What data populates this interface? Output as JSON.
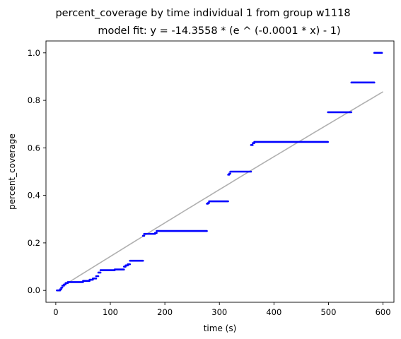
{
  "chart_data": {
    "type": "scatter",
    "title": "percent_coverage by time individual 1 from group w1118",
    "subtitle": "model fit: y = -14.3558 * (e ^ (-0.0001 * x) - 1)",
    "xlabel": "time (s)",
    "ylabel": "percent_coverage",
    "xlim": [
      -18,
      620
    ],
    "ylim": [
      -0.05,
      1.05
    ],
    "x_ticks": [
      0,
      100,
      200,
      300,
      400,
      500,
      600
    ],
    "y_ticks": [
      0.0,
      0.2,
      0.4,
      0.6,
      0.8,
      1.0
    ],
    "x_tick_labels": [
      "0",
      "100",
      "200",
      "300",
      "400",
      "500",
      "600"
    ],
    "y_tick_labels": [
      "0.0",
      "0.2",
      "0.4",
      "0.6",
      "0.8",
      "1.0"
    ],
    "grid": false,
    "colors": {
      "points": "#0000ff",
      "fit": "#b0b0b0"
    },
    "fit": {
      "name": "model fit",
      "a": -14.3558,
      "b": -0.0001,
      "x_range": [
        20,
        600
      ]
    },
    "series": [
      {
        "name": "percent_coverage",
        "segments": [
          {
            "x": [
              2,
              8
            ],
            "y": 0.0
          },
          {
            "x": [
              8,
              10
            ],
            "y": 0.005
          },
          {
            "x": [
              10,
              12
            ],
            "y": 0.012
          },
          {
            "x": [
              12,
              15
            ],
            "y": 0.02
          },
          {
            "x": [
              15,
              18
            ],
            "y": 0.025
          },
          {
            "x": [
              18,
              22
            ],
            "y": 0.031
          },
          {
            "x": [
              22,
              50
            ],
            "y": 0.035
          },
          {
            "x": [
              50,
              62
            ],
            "y": 0.04
          },
          {
            "x": [
              62,
              68
            ],
            "y": 0.045
          },
          {
            "x": [
              68,
              74
            ],
            "y": 0.05
          },
          {
            "x": [
              74,
              78
            ],
            "y": 0.06
          },
          {
            "x": [
              78,
              82
            ],
            "y": 0.075
          },
          {
            "x": [
              82,
              108
            ],
            "y": 0.085
          },
          {
            "x": [
              108,
              125
            ],
            "y": 0.088
          },
          {
            "x": [
              125,
              128
            ],
            "y": 0.1
          },
          {
            "x": [
              128,
              132
            ],
            "y": 0.105
          },
          {
            "x": [
              132,
              136
            ],
            "y": 0.11
          },
          {
            "x": [
              136,
              160
            ],
            "y": 0.125
          },
          {
            "x": [
              160,
              162
            ],
            "y": 0.23
          },
          {
            "x": [
              162,
              182
            ],
            "y": 0.238
          },
          {
            "x": [
              182,
              185
            ],
            "y": 0.242
          },
          {
            "x": [
              185,
              277
            ],
            "y": 0.25
          },
          {
            "x": [
              277,
              279
            ],
            "y": 0.365
          },
          {
            "x": [
              279,
              281
            ],
            "y": 0.368
          },
          {
            "x": [
              281,
              316
            ],
            "y": 0.375
          },
          {
            "x": [
              316,
              318
            ],
            "y": 0.487
          },
          {
            "x": [
              318,
              320
            ],
            "y": 0.492
          },
          {
            "x": [
              320,
              358
            ],
            "y": 0.5
          },
          {
            "x": [
              358,
              361
            ],
            "y": 0.612
          },
          {
            "x": [
              361,
              364
            ],
            "y": 0.62
          },
          {
            "x": [
              364,
              499
            ],
            "y": 0.625
          },
          {
            "x": [
              499,
              542
            ],
            "y": 0.75
          },
          {
            "x": [
              542,
              584
            ],
            "y": 0.875
          },
          {
            "x": [
              584,
              598
            ],
            "y": 1.0
          }
        ]
      }
    ]
  }
}
